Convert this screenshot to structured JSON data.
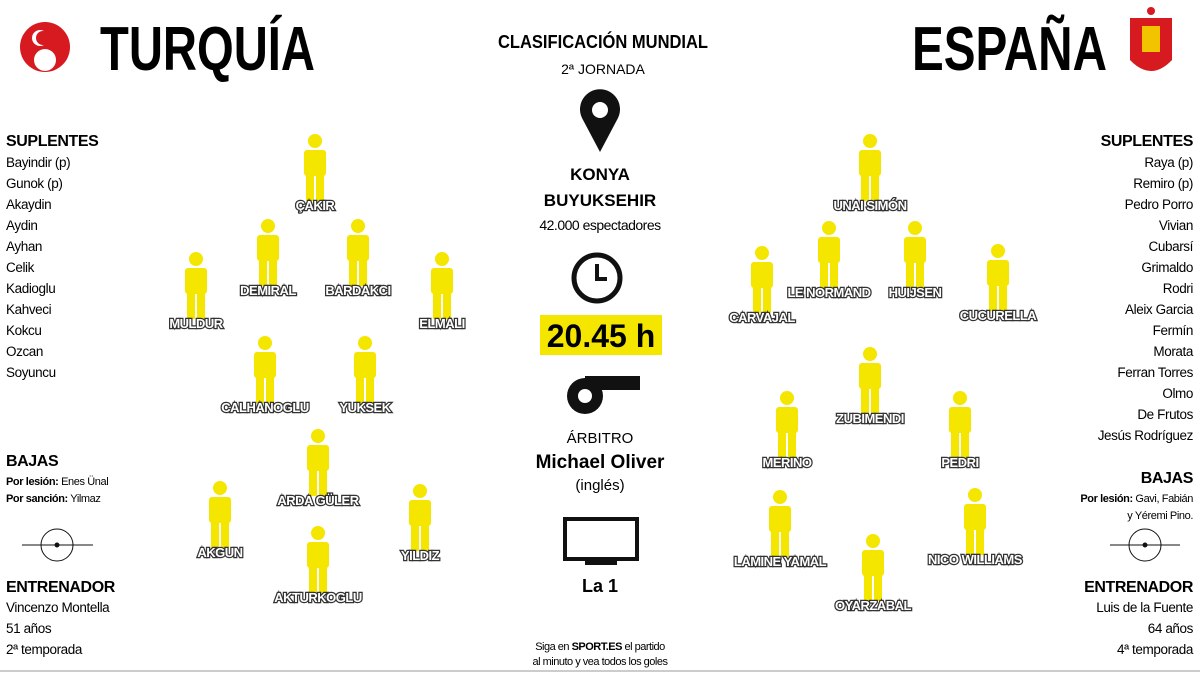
{
  "header": {
    "home_team": "TURQUÍA",
    "away_team": "ESPAÑA",
    "competition": "CLASIFICACIÓN MUNDIAL",
    "matchday": "2ª JORNADA"
  },
  "venue": {
    "name_line1": "KONYA",
    "name_line2": "BUYUKSEHIR",
    "attendance": "42.000 espectadores"
  },
  "time": "20.45 h",
  "referee": {
    "label": "ÁRBITRO",
    "name": "Michael Oliver",
    "nationality": "(inglés)"
  },
  "tv": "La 1",
  "note": {
    "line1_pre": "Siga en",
    "site": "SPORT.ES",
    "line1_post": "el partido",
    "line2": "al minuto y vea todos los goles"
  },
  "home": {
    "substitutes_title": "SUPLENTES",
    "substitutes": [
      "Bayindir (p)",
      "Gunok (p)",
      "Akaydin",
      "Aydin",
      "Ayhan",
      "Celik",
      "Kadioglu",
      "Kahveci",
      "Kokcu",
      "Ozcan",
      "Soyuncu"
    ],
    "absences_title": "BAJAS",
    "absences": [
      {
        "label": "Por lesión:",
        "text_lines": [
          "Enes Ünal"
        ]
      },
      {
        "label": "Por sanción:",
        "text_lines": [
          "Yilmaz"
        ]
      }
    ],
    "coach_title": "ENTRENADOR",
    "coach": [
      "Vincenzo Montella",
      "51 años",
      "2ª temporada"
    ],
    "lineup": [
      "ÇAKIR",
      "DEMIRAL",
      "BARDAKCI",
      "MULDUR",
      "ELMALI",
      "CALHANOGLU",
      "YUKSEK",
      "ARDA GÜLER",
      "AKGUN",
      "YILDIZ",
      "AKTURKOGLU"
    ]
  },
  "away": {
    "substitutes_title": "SUPLENTES",
    "substitutes": [
      "Raya (p)",
      "Remiro (p)",
      "Pedro Porro",
      "Vivian",
      "Cubarsí",
      "Grimaldo",
      "Rodri",
      "Aleix Garcia",
      "Fermín",
      "Morata",
      "Ferran Torres",
      "Olmo",
      "De Frutos",
      "Jesús Rodríguez"
    ],
    "absences_title": "BAJAS",
    "absences": [
      {
        "label": "Por lesión:",
        "text_lines": [
          "Gavi, Fabián",
          "y Yéremi Pino."
        ]
      }
    ],
    "coach_title": "ENTRENADOR",
    "coach": [
      "Luis de la Fuente",
      "64 años",
      "4ª temporada"
    ],
    "lineup": [
      "UNAI SIMÓN",
      "CARVAJAL",
      "LE NORMAND",
      "HUIJSEN",
      "CUCURELLA",
      "ZUBIMENDI",
      "MERINO",
      "PEDRI",
      "LAMINE YAMAL",
      "NICO WILLIAMS",
      "OYARZABAL"
    ]
  }
}
